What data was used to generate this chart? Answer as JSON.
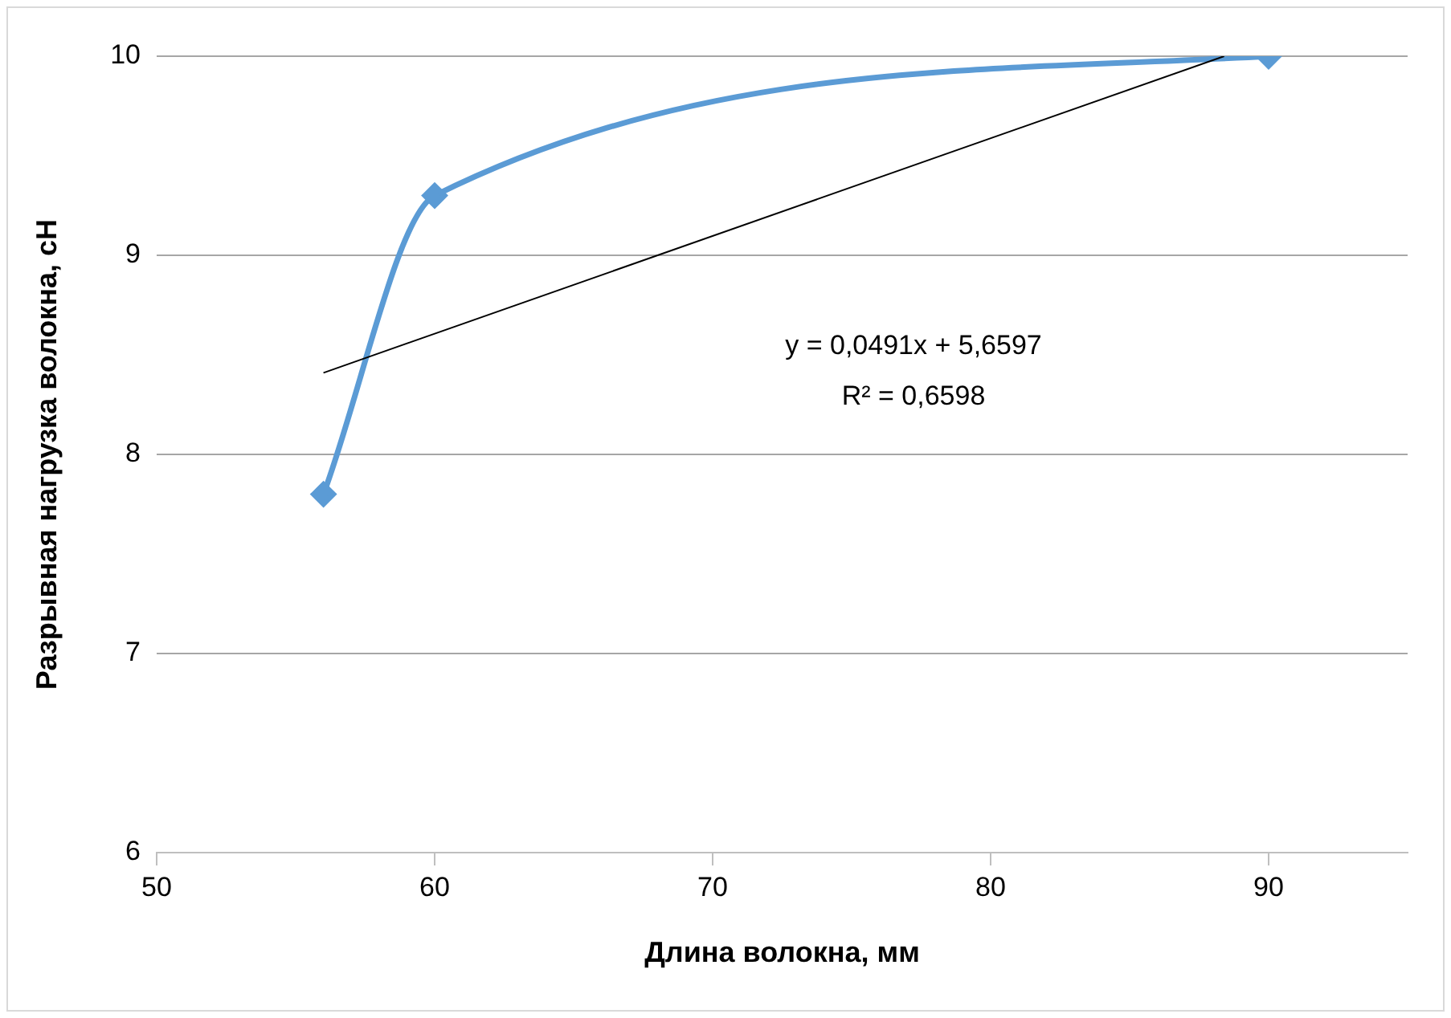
{
  "chart_data": {
    "type": "line",
    "xlabel": "Длина волокна, мм",
    "ylabel": "Разрывная нагрузка волокна, сН",
    "x": [
      56,
      60,
      90
    ],
    "series": [
      {
        "color": "#5b9bd5",
        "values": [
          7.8,
          9.3,
          10
        ],
        "marker": "diamond"
      },
      {
        "color": "#000000",
        "x": [
          56,
          88.4
        ],
        "values": [
          8.41,
          10.0
        ],
        "marker": "none"
      }
    ],
    "xlim": [
      50,
      95
    ],
    "xticks": [
      50,
      60,
      70,
      80,
      90
    ],
    "ylim": [
      6,
      10
    ],
    "yticks": [
      6,
      7,
      8,
      9,
      10
    ],
    "grid": "y",
    "legend": false,
    "annotations": [
      "y = 0,0491x + 5,6597",
      "R² = 0,6598"
    ]
  }
}
